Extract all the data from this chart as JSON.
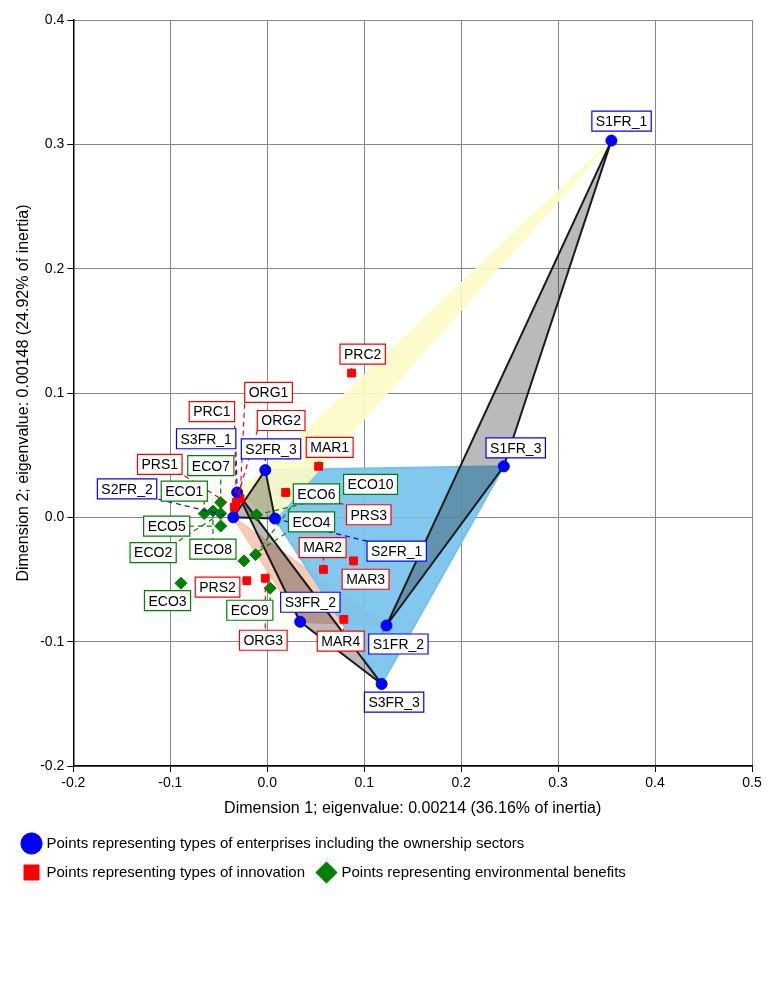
{
  "chart_data": {
    "type": "scatter",
    "xlabel": "Dimension 1; eigenvalue: 0.00214 (36.16% of inertia)",
    "ylabel": "Dimension 2; eigenvalue: 0.00148 (24.92% of inertia)",
    "xlim": [
      -0.2,
      0.5
    ],
    "xticks": [
      -0.2,
      -0.1,
      {
        "value": 0,
        "label": "0.0"
      },
      0.1,
      0.2,
      0.3,
      0.4,
      0.5
    ],
    "ylim": [
      -0.2,
      0.4
    ],
    "yticks": [
      -0.2,
      -0.1,
      {
        "value": 0,
        "label": "0.0"
      },
      0.1,
      0.2,
      0.3,
      0.4
    ],
    "grid": true,
    "legend": "bottom",
    "series": [
      {
        "type": "area",
        "color": "#fdfbc6",
        "x": [
          0.355,
          0.008,
          -0.031,
          -0.002,
          0.355
        ],
        "values": [
          0.303,
          -0.001,
          0.02,
          0.038,
          0.303
        ]
      },
      {
        "type": "area",
        "color": "#74c2ec",
        "x": [
          0.244,
          0.118,
          0.008,
          -0.002,
          0.244
        ],
        "values": [
          0.041,
          -0.134,
          -0.001,
          0.038,
          0.041
        ]
      },
      {
        "type": "area",
        "color": "#f5c6b0",
        "x": [
          0.123,
          0.034,
          -0.035,
          0.123
        ],
        "values": [
          -0.087,
          -0.084,
          0.0,
          -0.087
        ]
      },
      {
        "type": "area",
        "color": "#1a1a1a",
        "x": [
          0.355,
          0.244,
          0.123,
          0.355
        ],
        "values": [
          0.303,
          0.041,
          -0.087,
          0.303
        ]
      },
      {
        "type": "area",
        "color": "#1a1a1a",
        "x": [
          0.118,
          0.034,
          -0.031,
          0.118
        ],
        "values": [
          -0.134,
          -0.084,
          0.02,
          -0.134
        ]
      },
      {
        "type": "area",
        "color": "#1a1a1a",
        "x": [
          -0.002,
          0.008,
          -0.035,
          -0.002
        ],
        "values": [
          0.038,
          -0.001,
          0.0,
          0.038
        ]
      },
      {
        "name": "Points representing types of enterprises including the ownership sectors",
        "color": "#0000ff",
        "marker": "circle",
        "x": [
          0.355,
          0.244,
          0.123,
          0.118,
          0.034,
          0.008,
          -0.002,
          -0.031,
          -0.035
        ],
        "values": [
          0.303,
          0.041,
          -0.087,
          -0.134,
          -0.084,
          -0.001,
          0.038,
          0.02,
          0.0
        ],
        "value_labels": [
          "S1FR_1",
          "S1FR_3",
          "S1FR_2",
          "S3FR_3",
          "S3FR_2",
          "S2FR_1",
          "S2FR_3",
          "S3FR_1",
          "S2FR_2"
        ]
      },
      {
        "name": "Points representing types of innovation",
        "color": "#ff0000",
        "marker": "square",
        "x": [
          0.087,
          0.053,
          0.019,
          0.089,
          0.058,
          0.079,
          -0.002,
          -0.021,
          -0.028,
          -0.032,
          -0.03,
          -0.034
        ],
        "values": [
          0.116,
          0.041,
          0.02,
          -0.035,
          -0.042,
          -0.082,
          -0.049,
          -0.051,
          0.015,
          0.012,
          0.018,
          0.008
        ],
        "value_labels": [
          "PRC2",
          "MAR1",
          "PRS3",
          "MAR3",
          "MAR2",
          "MAR4",
          "ORG3",
          "PRS2",
          "ORG1",
          "PRC1",
          "ORG2",
          "PRS1"
        ]
      },
      {
        "name": "Points representing environmental benefits",
        "color": "#008000",
        "marker": "diamond",
        "x": [
          0.003,
          -0.089,
          -0.024,
          -0.012,
          -0.048,
          -0.065,
          -0.056,
          -0.048,
          -0.048,
          -0.011
        ],
        "values": [
          -0.057,
          -0.053,
          -0.035,
          -0.03,
          -0.007,
          0.003,
          0.005,
          0.003,
          0.012,
          0.002
        ],
        "value_labels": [
          "ECO9",
          "ECO3",
          "ECO4",
          "ECO6",
          "ECO5",
          "ECO1",
          "ECO8",
          "ECO2",
          "ECO7",
          "ECO10"
        ]
      }
    ]
  }
}
